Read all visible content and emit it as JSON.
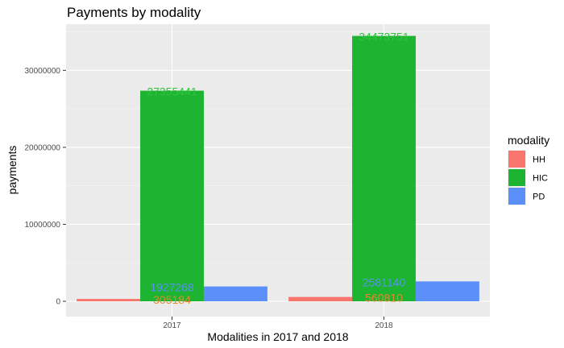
{
  "chart_data": {
    "type": "bar",
    "title": "Payments by modality",
    "xlabel": "Modalities in 2017 and 2018",
    "ylabel": "payments",
    "categories": [
      "2017",
      "2018"
    ],
    "ylim": [
      0,
      36000000
    ],
    "yticks": [
      0,
      10000000,
      20000000,
      30000000
    ],
    "ytick_labels": [
      "0",
      "10000000",
      "20000000",
      "30000000"
    ],
    "legend": {
      "title": "modality",
      "placement": "right"
    },
    "grid": true,
    "series": [
      {
        "name": "HH",
        "color": "#F8766D",
        "values": [
          305184,
          560810
        ],
        "labels": [
          "305184",
          "560810"
        ],
        "label_color": "#E08A2E"
      },
      {
        "name": "HIC",
        "color": "#1CB431",
        "values": [
          27355441,
          34473751
        ],
        "labels": [
          "27355441",
          "34473751"
        ],
        "label_color": "#31C43F"
      },
      {
        "name": "PD",
        "color": "#5B8FF9",
        "values": [
          1927268,
          2581140
        ],
        "labels": [
          "1927268",
          "2581140"
        ],
        "label_color": "#5B8FF9"
      }
    ]
  }
}
